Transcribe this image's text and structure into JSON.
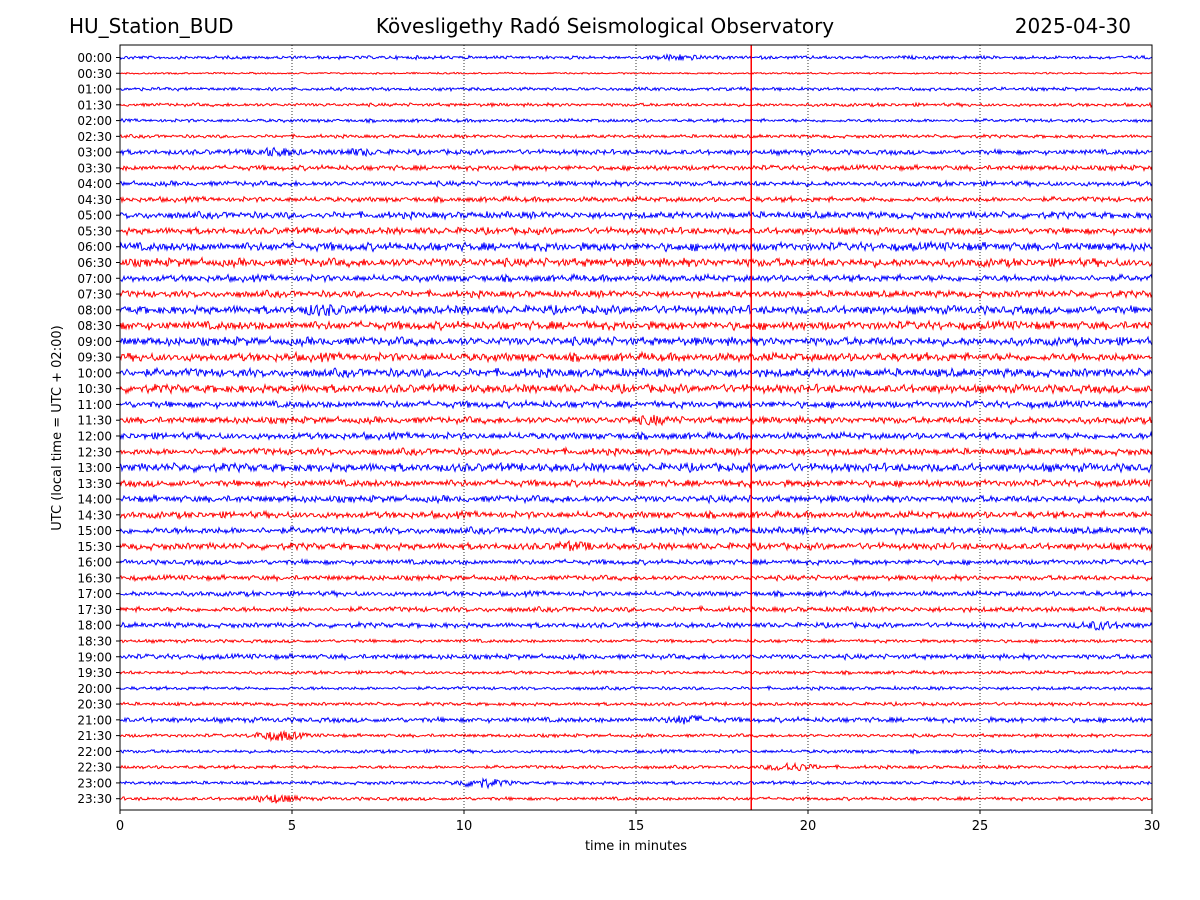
{
  "header": {
    "station": "HU_Station_BUD",
    "observatory": "Kövesligethy Radó Seismological Observatory",
    "date": "2025-04-30"
  },
  "chart_data": {
    "type": "line",
    "title": "Kövesligethy Radó Seismological Observatory",
    "xlabel": "time in minutes",
    "ylabel": "UTC (local time = UTC + 02:00)",
    "xlim": [
      0,
      30
    ],
    "xticks": [
      0,
      5,
      10,
      15,
      20,
      25,
      30
    ],
    "grid": "vertical dotted at each x tick",
    "rows": [
      "00:00",
      "00:30",
      "01:00",
      "01:30",
      "02:00",
      "02:30",
      "03:00",
      "03:30",
      "04:00",
      "04:30",
      "05:00",
      "05:30",
      "06:00",
      "06:30",
      "07:00",
      "07:30",
      "08:00",
      "08:30",
      "09:00",
      "09:30",
      "10:00",
      "10:30",
      "11:00",
      "11:30",
      "12:00",
      "12:30",
      "13:00",
      "13:30",
      "14:00",
      "14:30",
      "15:00",
      "15:30",
      "16:00",
      "16:30",
      "17:00",
      "17:30",
      "18:00",
      "18:30",
      "19:00",
      "19:30",
      "20:00",
      "20:30",
      "21:00",
      "21:30",
      "22:00",
      "22:30",
      "23:00",
      "23:30"
    ],
    "trace_colors": [
      "#0000ff",
      "#ff0000"
    ],
    "row_amplitude": [
      2,
      1,
      2,
      2,
      2,
      2,
      3,
      3,
      3,
      3,
      4,
      4,
      5,
      5,
      4,
      4,
      5,
      5,
      5,
      5,
      5,
      5,
      4,
      4,
      4,
      4,
      5,
      4,
      4,
      4,
      4,
      4,
      3,
      3,
      3,
      3,
      3,
      2,
      3,
      2,
      2,
      2,
      3,
      2,
      2,
      2,
      2,
      2
    ],
    "events": [
      {
        "row": "00:00",
        "minute": 16.2,
        "amplitude": 3
      },
      {
        "row": "03:00",
        "minute": 4.5,
        "amplitude": 4
      },
      {
        "row": "03:00",
        "minute": 7.0,
        "amplitude": 3
      },
      {
        "row": "08:00",
        "minute": 5.9,
        "amplitude": 5
      },
      {
        "row": "11:30",
        "minute": 15.5,
        "amplitude": 4
      },
      {
        "row": "15:30",
        "minute": 13.1,
        "amplitude": 4
      },
      {
        "row": "18:00",
        "minute": 28.5,
        "amplitude": 4
      },
      {
        "row": "21:00",
        "minute": 16.5,
        "amplitude": 4
      },
      {
        "row": "21:30",
        "minute": 4.6,
        "amplitude": 5
      },
      {
        "row": "22:30",
        "minute": 19.5,
        "amplitude": 4
      },
      {
        "row": "23:00",
        "minute": 10.5,
        "amplitude": 5
      },
      {
        "row": "23:30",
        "minute": 4.5,
        "amplitude": 4
      }
    ],
    "marker_line": {
      "minute": 18.35,
      "color": "#ff0000"
    }
  }
}
